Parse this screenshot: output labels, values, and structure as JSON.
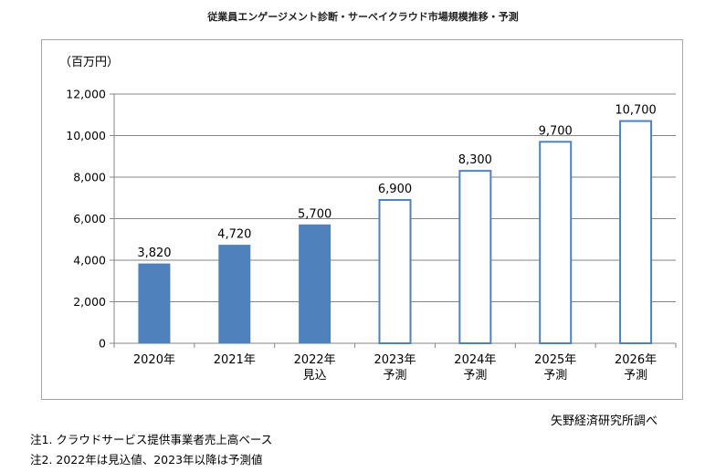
{
  "chart_data": {
    "type": "bar",
    "title": "従業員エンゲージメント診断・サーベイクラウド市場規模推移・予測",
    "unit_label": "（百万円）",
    "categories": [
      [
        "2020年"
      ],
      [
        "2021年"
      ],
      [
        "2022年",
        "見込"
      ],
      [
        "2023年",
        "予測"
      ],
      [
        "2024年",
        "予測"
      ],
      [
        "2025年",
        "予測"
      ],
      [
        "2026年",
        "予測"
      ]
    ],
    "values": [
      3820,
      4720,
      5700,
      6900,
      8300,
      9700,
      10700
    ],
    "value_labels": [
      "3,820",
      "4,720",
      "5,700",
      "6,900",
      "8,300",
      "9,700",
      "10,700"
    ],
    "bar_style": [
      "filled",
      "filled",
      "filled",
      "outline",
      "outline",
      "outline",
      "outline"
    ],
    "ylim": [
      0,
      12000
    ],
    "yticks": [
      0,
      2000,
      4000,
      6000,
      8000,
      10000,
      12000
    ],
    "ytick_labels": [
      "0",
      "2,000",
      "4,000",
      "6,000",
      "8,000",
      "10,000",
      "12,000"
    ],
    "grid": true,
    "bar_color": "#4f81bd",
    "grid_color": "#868686"
  },
  "source": "矢野経済研究所調べ",
  "notes": [
    "注1.  クラウドサービス提供事業者売上高ベース",
    "注2.  2022年は見込値、2023年以降は予測値"
  ]
}
